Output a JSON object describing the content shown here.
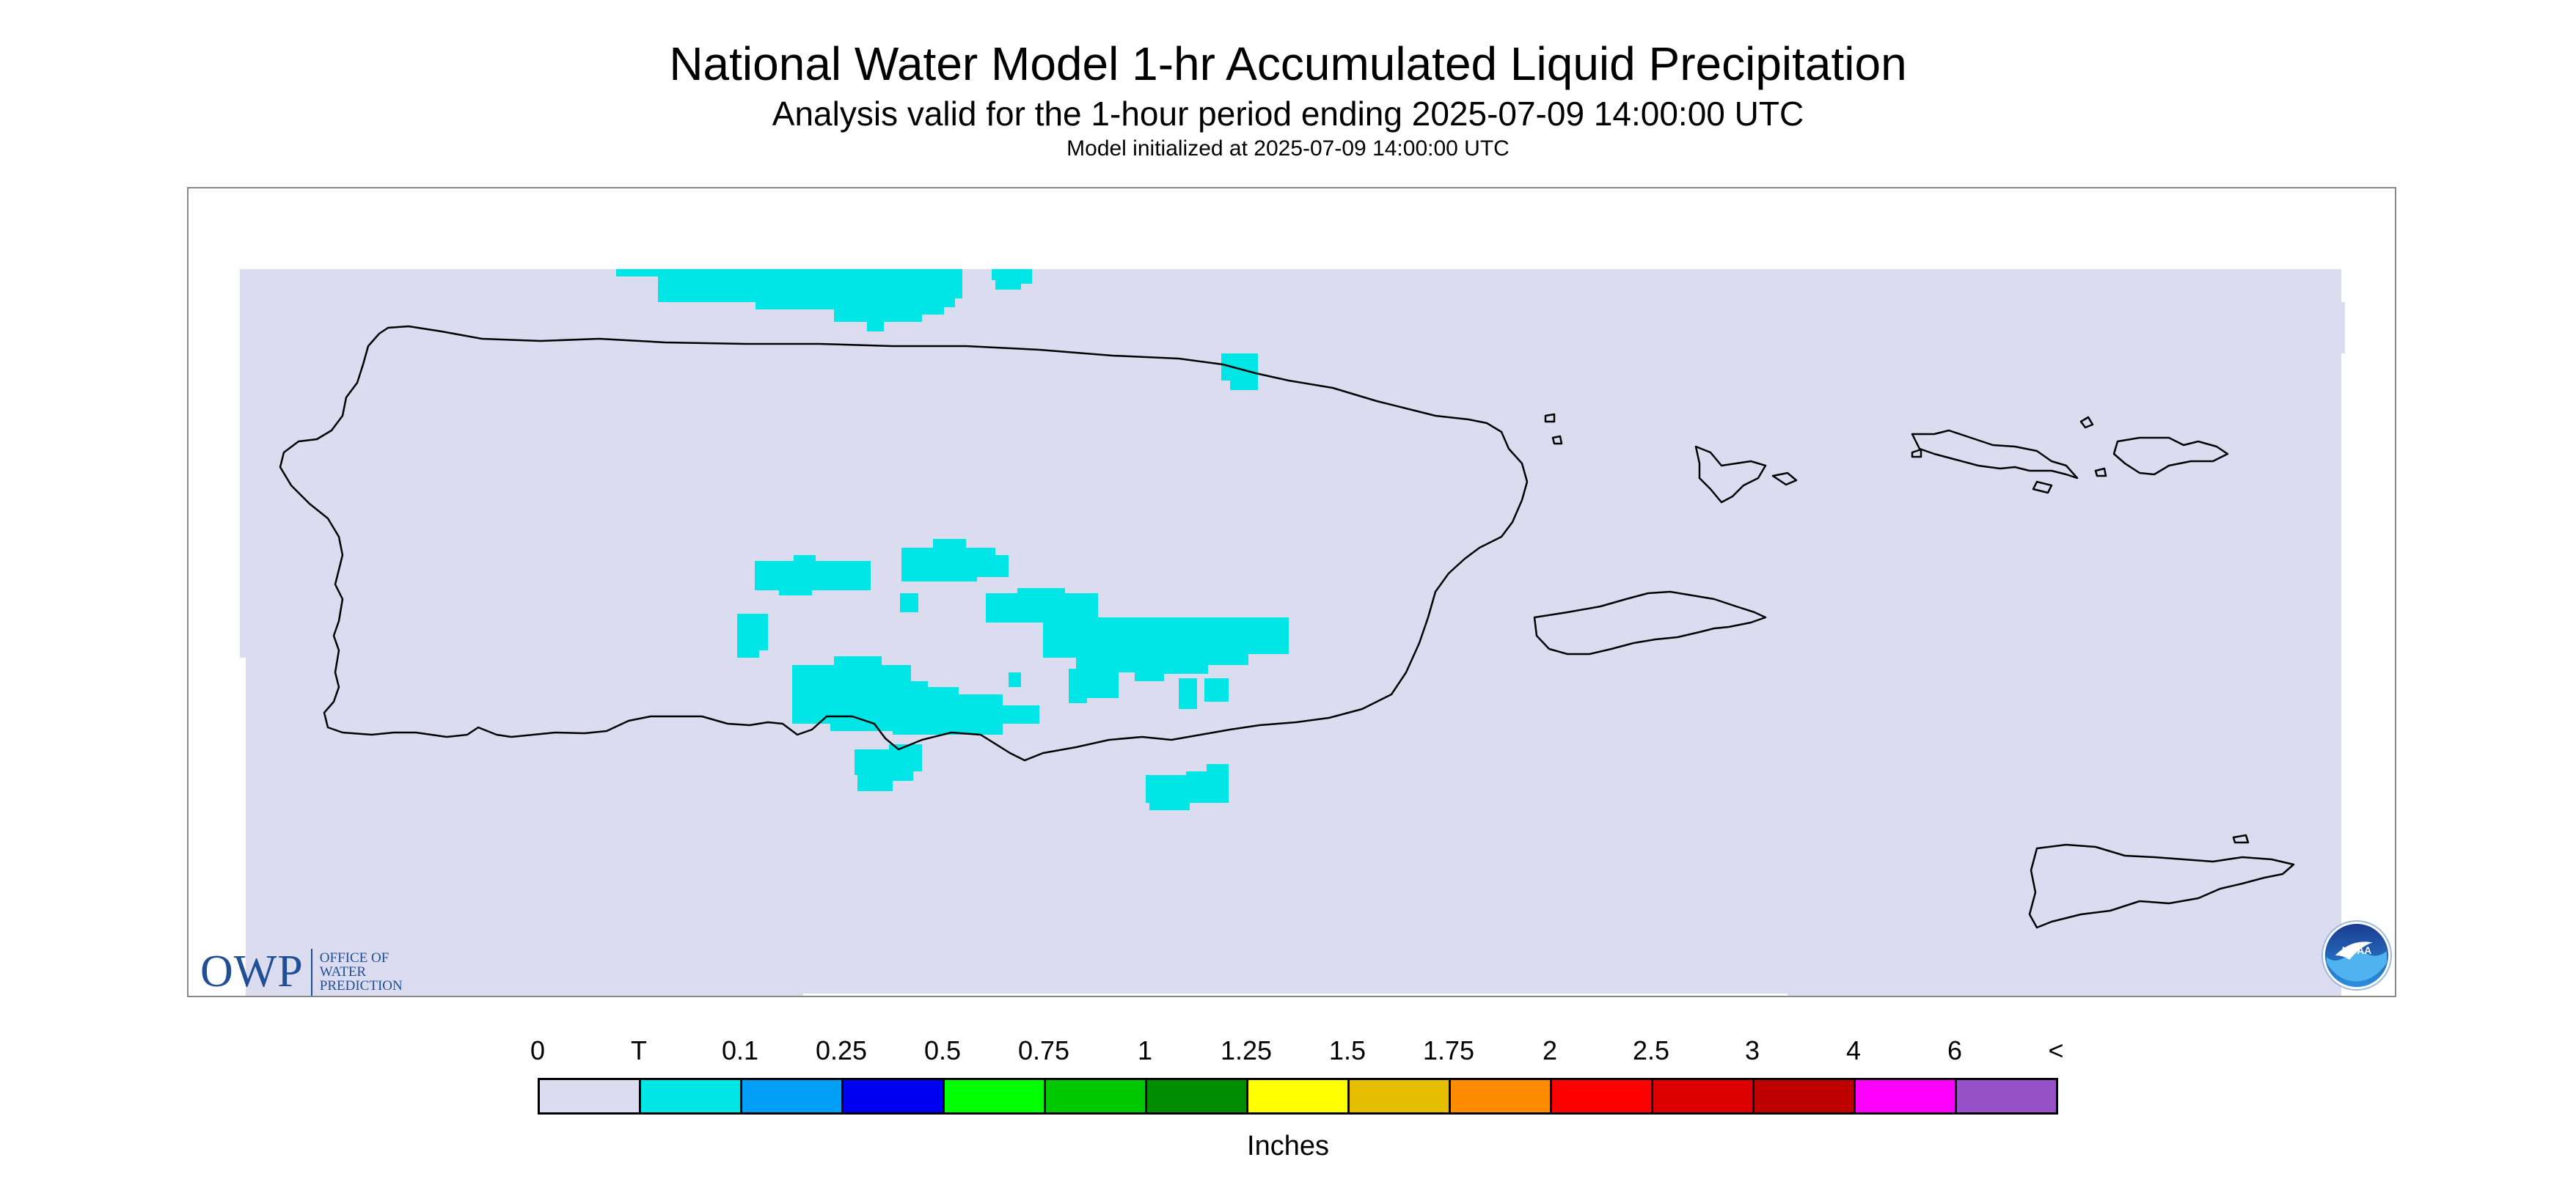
{
  "title": "National Water Model 1-hr Accumulated Liquid Precipitation",
  "subtitle": "Analysis valid for the 1-hour period ending 2025-07-09 14:00:00 UTC",
  "init_line": "Model initialized at 2025-07-09 14:00:00 UTC",
  "owp_logo": {
    "letters": "OWP",
    "words": [
      "OFFICE OF",
      "WATER",
      "PREDICTION"
    ]
  },
  "noaa_logo": {
    "text": "NOAA"
  },
  "colors": {
    "no_precip": "#dcdcf0",
    "trace": "#00e6e6",
    "coast": "#000000"
  },
  "legend": {
    "units": "Inches",
    "labels": [
      "0",
      "T",
      "0.1",
      "0.25",
      "0.5",
      "0.75",
      "1",
      "1.25",
      "1.5",
      "1.75",
      "2",
      "2.5",
      "3",
      "4",
      "6",
      "<"
    ],
    "bins": [
      {
        "color": "#dcdcf0"
      },
      {
        "color": "#00e6e6"
      },
      {
        "color": "#009ef5"
      },
      {
        "color": "#0000f0"
      },
      {
        "color": "#00ff00"
      },
      {
        "color": "#00c800"
      },
      {
        "color": "#008c00"
      },
      {
        "color": "#ffff00"
      },
      {
        "color": "#e6be00"
      },
      {
        "color": "#ff8c00"
      },
      {
        "color": "#ff0000"
      },
      {
        "color": "#dc0000"
      },
      {
        "color": "#be0000"
      },
      {
        "color": "#ff00ff"
      },
      {
        "color": "#9650c8"
      }
    ]
  }
}
